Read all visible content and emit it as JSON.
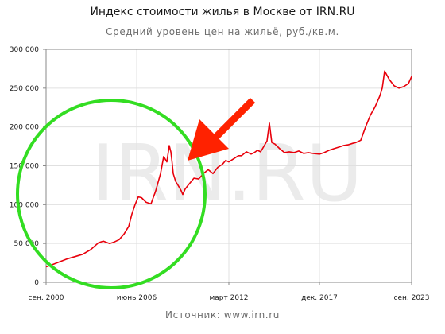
{
  "header": {
    "title": "Индекс стоимости жилья в Москве от IRN.RU",
    "subtitle": "Средний уровень цен на жильё, руб./кв.м."
  },
  "footer": {
    "source": "Источник: www.irn.ru"
  },
  "watermark": "IRN.RU",
  "chart_data": {
    "type": "line",
    "title": "Индекс стоимости жилья в Москве от IRN.RU",
    "subtitle": "Средний уровень цен на жильё, руб./кв.м.",
    "xlabel": "",
    "ylabel": "",
    "ylim": [
      0,
      300000
    ],
    "xlim": [
      2000.7,
      2023.7
    ],
    "grid": true,
    "y_ticks": [
      {
        "value": 0,
        "label": "0"
      },
      {
        "value": 50000,
        "label": "50 000"
      },
      {
        "value": 100000,
        "label": "100 000"
      },
      {
        "value": 150000,
        "label": "150 000"
      },
      {
        "value": 200000,
        "label": "200 000"
      },
      {
        "value": 250000,
        "label": "250 000"
      },
      {
        "value": 300000,
        "label": "300 000"
      }
    ],
    "x_ticks": [
      {
        "value": 2000.7,
        "label": "сен. 2000"
      },
      {
        "value": 2006.4,
        "label": "июнь 2006"
      },
      {
        "value": 2012.2,
        "label": "март 2012"
      },
      {
        "value": 2017.9,
        "label": "дек. 2017"
      },
      {
        "value": 2023.7,
        "label": "сен. 2023"
      }
    ],
    "series": [
      {
        "color": "#e8000b",
        "x": [
          2000.7,
          2001.0,
          2001.5,
          2002.0,
          2002.5,
          2003.0,
          2003.5,
          2004.0,
          2004.3,
          2004.7,
          2005.0,
          2005.3,
          2005.6,
          2005.9,
          2006.1,
          2006.3,
          2006.5,
          2006.7,
          2006.85,
          2007.0,
          2007.3,
          2007.6,
          2007.9,
          2008.1,
          2008.3,
          2008.45,
          2008.55,
          2008.62,
          2008.7,
          2008.85,
          2009.0,
          2009.2,
          2009.3,
          2009.45,
          2009.6,
          2009.8,
          2010.0,
          2010.3,
          2010.6,
          2010.9,
          2011.2,
          2011.5,
          2011.8,
          2012.0,
          2012.2,
          2012.5,
          2012.8,
          2013.0,
          2013.3,
          2013.6,
          2013.8,
          2014.0,
          2014.2,
          2014.4,
          2014.6,
          2014.75,
          2014.9,
          2015.1,
          2015.4,
          2015.7,
          2016.0,
          2016.3,
          2016.6,
          2016.9,
          2017.2,
          2017.5,
          2017.9,
          2018.2,
          2018.5,
          2018.8,
          2019.1,
          2019.4,
          2019.7,
          2020.0,
          2020.2,
          2020.5,
          2020.8,
          2021.1,
          2021.4,
          2021.7,
          2021.85,
          2022.0,
          2022.3,
          2022.6,
          2022.9,
          2023.2,
          2023.5,
          2023.7
        ],
        "values": [
          20000,
          22000,
          26000,
          30000,
          33000,
          36000,
          42000,
          51000,
          53000,
          50000,
          52000,
          55000,
          62000,
          72000,
          88000,
          100000,
          110000,
          109000,
          106000,
          103000,
          101000,
          118000,
          140000,
          162000,
          155000,
          176000,
          168000,
          156000,
          140000,
          130000,
          125000,
          118000,
          113000,
          120000,
          124000,
          129000,
          134000,
          133000,
          140000,
          145000,
          140000,
          148000,
          152000,
          157000,
          155000,
          159000,
          163000,
          163000,
          168000,
          165000,
          167000,
          170000,
          168000,
          175000,
          182000,
          205000,
          180000,
          178000,
          172000,
          167000,
          168000,
          167000,
          169000,
          166000,
          167000,
          166000,
          165000,
          167000,
          170000,
          172000,
          174000,
          176000,
          177000,
          179000,
          180000,
          183000,
          200000,
          215000,
          226000,
          240000,
          250000,
          272000,
          261000,
          253000,
          250000,
          252000,
          256000,
          265000
        ]
      }
    ],
    "annotations": [
      {
        "type": "circle",
        "color": "#33dd22"
      },
      {
        "type": "arrow",
        "color": "#ff2200"
      }
    ]
  }
}
